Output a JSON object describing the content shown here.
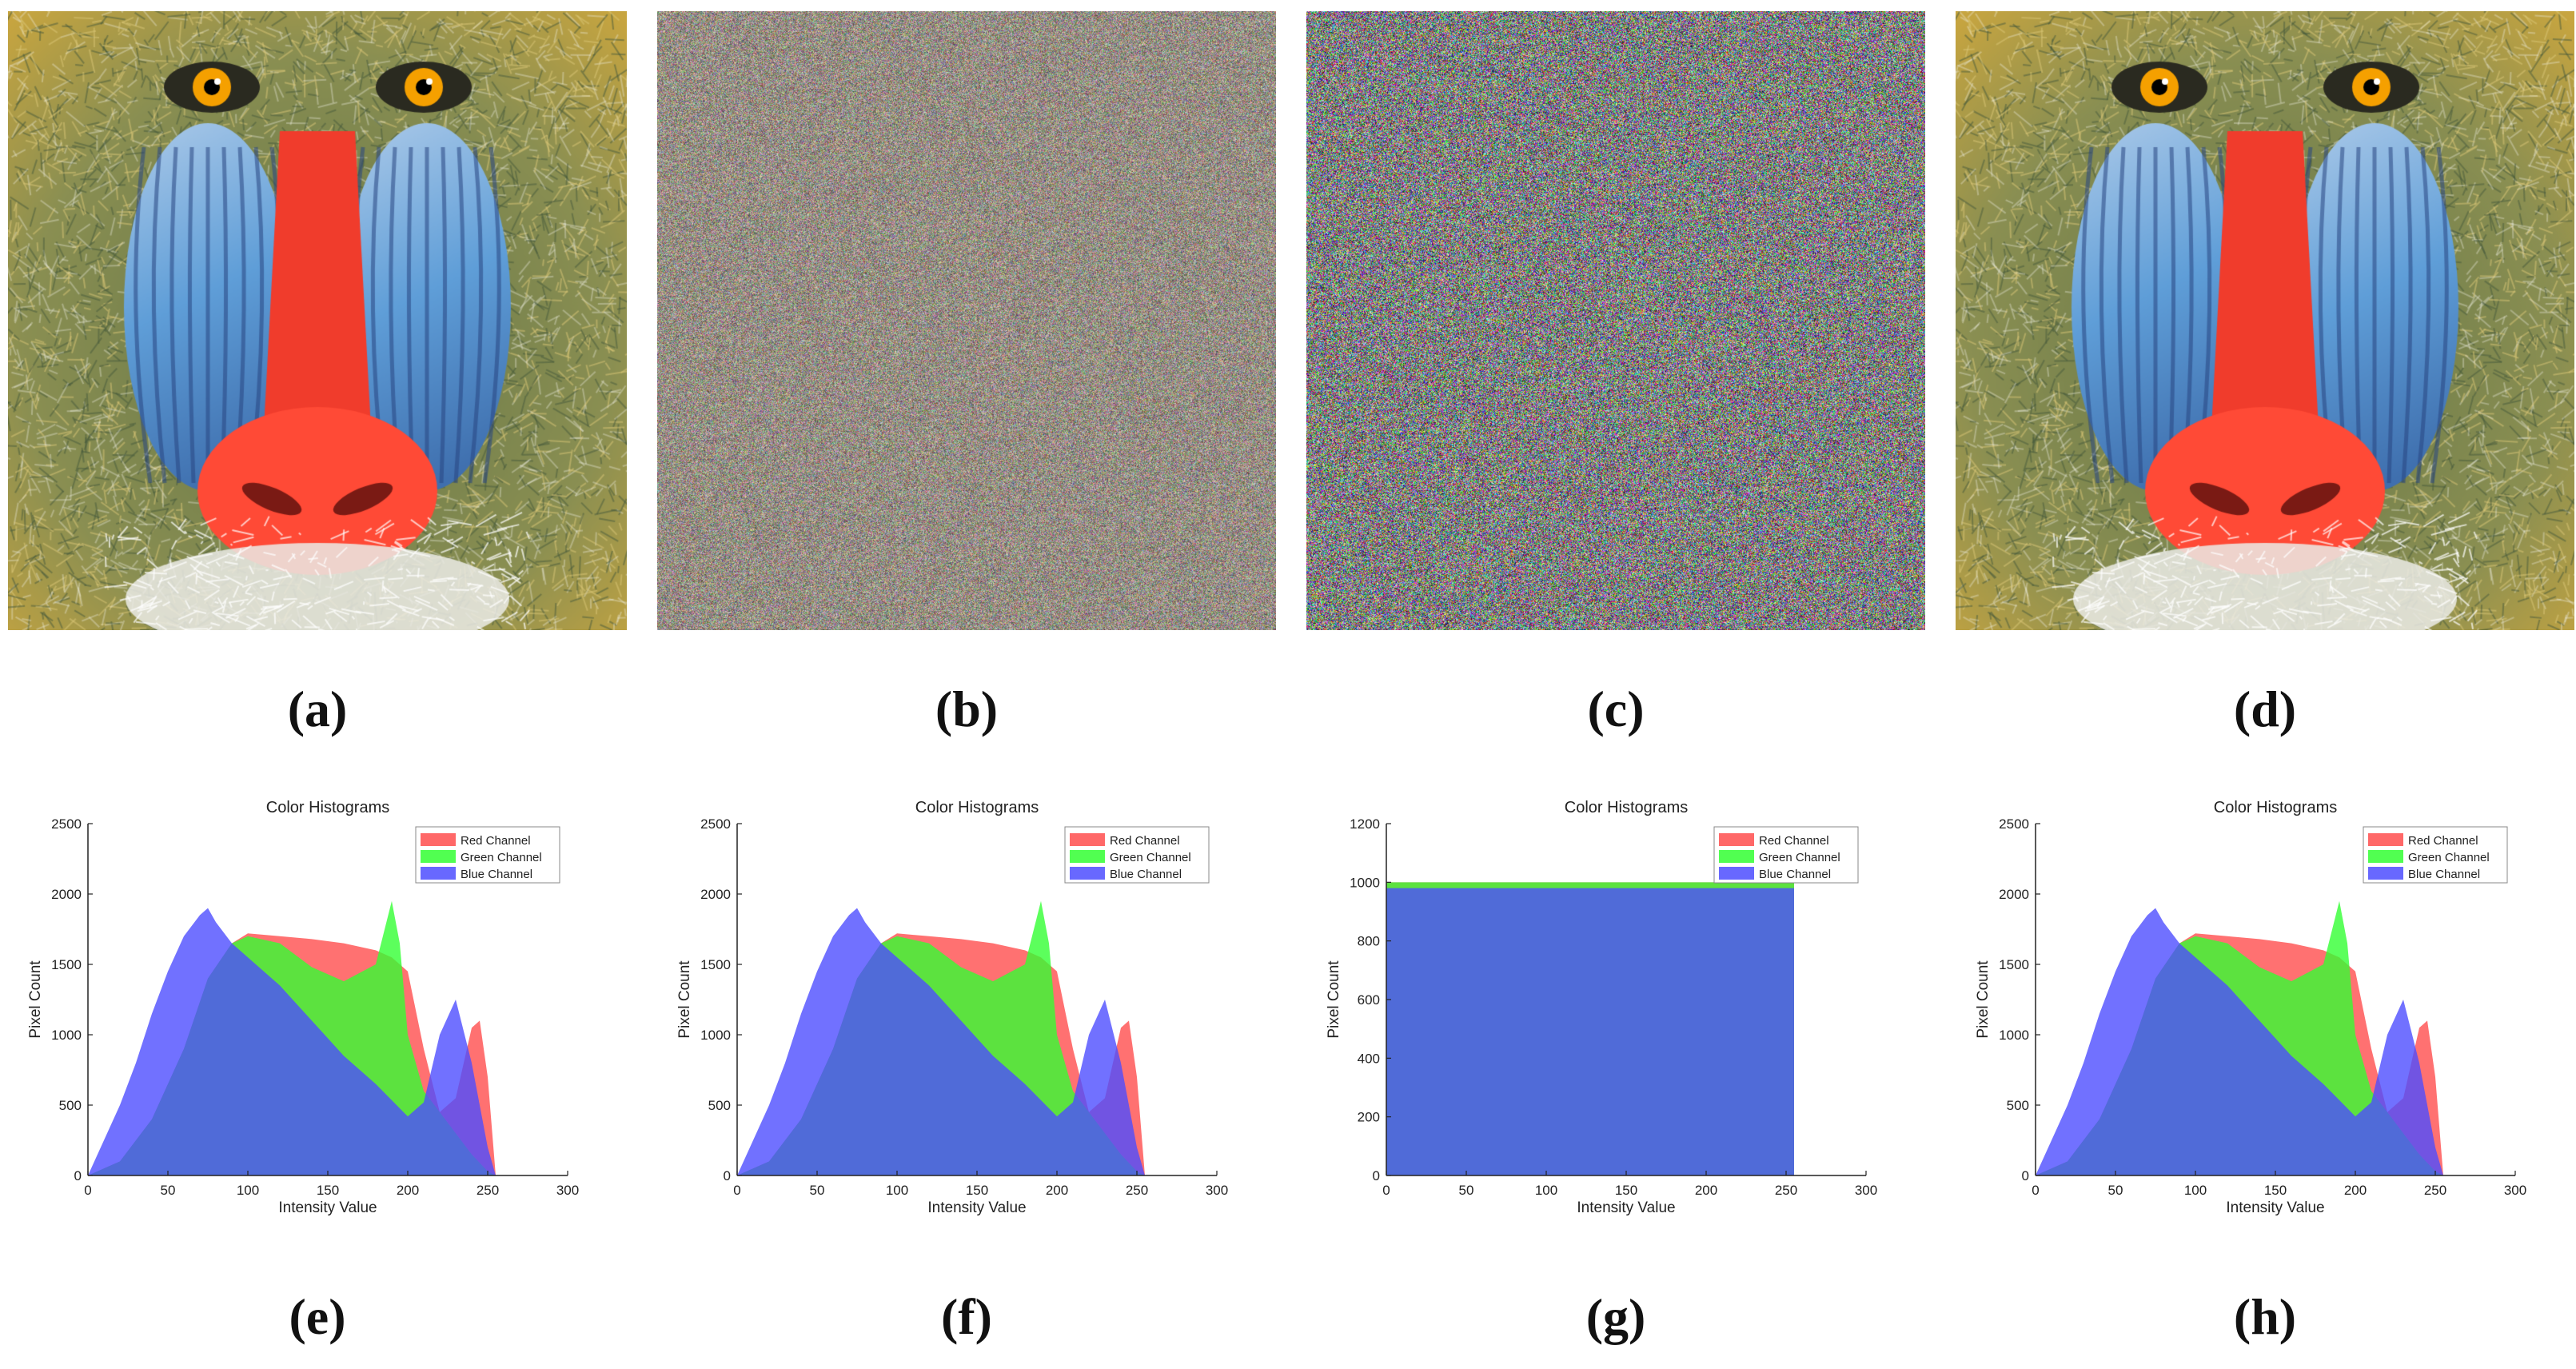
{
  "panels": [
    {
      "id": "a",
      "caption": "(a)",
      "content": "original-mandrill"
    },
    {
      "id": "b",
      "caption": "(b)",
      "content": "noise-fine"
    },
    {
      "id": "c",
      "caption": "(c)",
      "content": "noise-colorful"
    },
    {
      "id": "d",
      "caption": "(d)",
      "content": "decrypted-mandrill"
    },
    {
      "id": "e",
      "caption": "(e)"
    },
    {
      "id": "f",
      "caption": "(f)"
    },
    {
      "id": "g",
      "caption": "(g)"
    },
    {
      "id": "h",
      "caption": "(h)"
    }
  ],
  "chart_data": [
    {
      "panel": "e",
      "type": "area",
      "title": "Color Histograms",
      "xlabel": "Intensity Value",
      "ylabel": "Pixel Count",
      "xlim": [
        0,
        300
      ],
      "ylim": [
        0,
        2500
      ],
      "xticks": [
        0,
        50,
        100,
        150,
        200,
        250,
        300
      ],
      "yticks": [
        0,
        500,
        1000,
        1500,
        2000,
        2500
      ],
      "legend_position": "top-right",
      "series": [
        {
          "name": "Red Channel",
          "color": "#ff4d4d",
          "x": [
            0,
            20,
            40,
            60,
            75,
            90,
            100,
            120,
            140,
            160,
            180,
            190,
            200,
            210,
            220,
            230,
            240,
            245,
            250,
            255
          ],
          "y": [
            0,
            100,
            400,
            900,
            1400,
            1650,
            1720,
            1700,
            1680,
            1650,
            1600,
            1550,
            1450,
            900,
            450,
            550,
            1050,
            1100,
            700,
            0
          ]
        },
        {
          "name": "Green Channel",
          "color": "#33ff33",
          "x": [
            0,
            20,
            40,
            60,
            75,
            90,
            100,
            120,
            140,
            160,
            180,
            190,
            195,
            200,
            210,
            220,
            230,
            240,
            250,
            255
          ],
          "y": [
            0,
            100,
            400,
            900,
            1400,
            1650,
            1700,
            1650,
            1480,
            1380,
            1500,
            1950,
            1650,
            1000,
            600,
            450,
            300,
            150,
            30,
            0
          ]
        },
        {
          "name": "Blue Channel",
          "color": "#4d4dff",
          "x": [
            0,
            10,
            20,
            30,
            40,
            50,
            60,
            70,
            75,
            80,
            90,
            100,
            120,
            140,
            160,
            180,
            200,
            210,
            220,
            230,
            240,
            250,
            255
          ],
          "y": [
            0,
            250,
            500,
            800,
            1150,
            1450,
            1700,
            1850,
            1900,
            1800,
            1650,
            1550,
            1350,
            1100,
            850,
            650,
            420,
            520,
            1000,
            1250,
            800,
            200,
            0
          ]
        }
      ]
    },
    {
      "panel": "f",
      "type": "area",
      "title": "Color Histograms",
      "xlabel": "Intensity Value",
      "ylabel": "Pixel Count",
      "xlim": [
        0,
        300
      ],
      "ylim": [
        0,
        2500
      ],
      "xticks": [
        0,
        50,
        100,
        150,
        200,
        250,
        300
      ],
      "yticks": [
        0,
        500,
        1000,
        1500,
        2000,
        2500
      ],
      "legend_position": "top-right",
      "series": [
        {
          "name": "Red Channel",
          "color": "#ff4d4d",
          "x": [
            0,
            20,
            40,
            60,
            75,
            90,
            100,
            120,
            140,
            160,
            180,
            190,
            200,
            210,
            220,
            230,
            240,
            245,
            250,
            255
          ],
          "y": [
            0,
            100,
            400,
            900,
            1400,
            1650,
            1720,
            1700,
            1680,
            1650,
            1600,
            1550,
            1450,
            900,
            450,
            550,
            1050,
            1100,
            700,
            0
          ]
        },
        {
          "name": "Green Channel",
          "color": "#33ff33",
          "x": [
            0,
            20,
            40,
            60,
            75,
            90,
            100,
            120,
            140,
            160,
            180,
            190,
            195,
            200,
            210,
            220,
            230,
            240,
            250,
            255
          ],
          "y": [
            0,
            100,
            400,
            900,
            1400,
            1650,
            1700,
            1650,
            1480,
            1380,
            1500,
            1950,
            1650,
            1000,
            600,
            450,
            300,
            150,
            30,
            0
          ]
        },
        {
          "name": "Blue Channel",
          "color": "#4d4dff",
          "x": [
            0,
            10,
            20,
            30,
            40,
            50,
            60,
            70,
            75,
            80,
            90,
            100,
            120,
            140,
            160,
            180,
            200,
            210,
            220,
            230,
            240,
            250,
            255
          ],
          "y": [
            0,
            250,
            500,
            800,
            1150,
            1450,
            1700,
            1850,
            1900,
            1800,
            1650,
            1550,
            1350,
            1100,
            850,
            650,
            420,
            520,
            1000,
            1250,
            800,
            200,
            0
          ]
        }
      ]
    },
    {
      "panel": "g",
      "type": "area",
      "title": "Color Histograms",
      "xlabel": "Intensity Value",
      "ylabel": "Pixel Count",
      "xlim": [
        0,
        300
      ],
      "ylim": [
        0,
        1200
      ],
      "xticks": [
        0,
        50,
        100,
        150,
        200,
        250,
        300
      ],
      "yticks": [
        0,
        200,
        400,
        600,
        800,
        1000,
        1200
      ],
      "legend_position": "top-right",
      "series": [
        {
          "name": "Red Channel",
          "color": "#ff4d4d",
          "x": [
            0,
            255
          ],
          "y": [
            1000,
            1000
          ]
        },
        {
          "name": "Green Channel",
          "color": "#33ff33",
          "x": [
            0,
            255
          ],
          "y": [
            1000,
            1000
          ]
        },
        {
          "name": "Blue Channel",
          "color": "#4d4dff",
          "x": [
            0,
            255
          ],
          "y": [
            980,
            980
          ]
        }
      ]
    },
    {
      "panel": "h",
      "type": "area",
      "title": "Color Histograms",
      "xlabel": "Intensity Value",
      "ylabel": "Pixel Count",
      "xlim": [
        0,
        300
      ],
      "ylim": [
        0,
        2500
      ],
      "xticks": [
        0,
        50,
        100,
        150,
        200,
        250,
        300
      ],
      "yticks": [
        0,
        500,
        1000,
        1500,
        2000,
        2500
      ],
      "legend_position": "top-right",
      "series": [
        {
          "name": "Red Channel",
          "color": "#ff4d4d",
          "x": [
            0,
            20,
            40,
            60,
            75,
            90,
            100,
            120,
            140,
            160,
            180,
            190,
            200,
            210,
            220,
            230,
            240,
            245,
            250,
            255
          ],
          "y": [
            0,
            100,
            400,
            900,
            1400,
            1650,
            1720,
            1700,
            1680,
            1650,
            1600,
            1550,
            1450,
            900,
            450,
            550,
            1050,
            1100,
            700,
            0
          ]
        },
        {
          "name": "Green Channel",
          "color": "#33ff33",
          "x": [
            0,
            20,
            40,
            60,
            75,
            90,
            100,
            120,
            140,
            160,
            180,
            190,
            195,
            200,
            210,
            220,
            230,
            240,
            250,
            255
          ],
          "y": [
            0,
            100,
            400,
            900,
            1400,
            1650,
            1700,
            1650,
            1480,
            1380,
            1500,
            1950,
            1650,
            1000,
            600,
            450,
            300,
            150,
            30,
            0
          ]
        },
        {
          "name": "Blue Channel",
          "color": "#4d4dff",
          "x": [
            0,
            10,
            20,
            30,
            40,
            50,
            60,
            70,
            75,
            80,
            90,
            100,
            120,
            140,
            160,
            180,
            200,
            210,
            220,
            230,
            240,
            250,
            255
          ],
          "y": [
            0,
            250,
            500,
            800,
            1150,
            1450,
            1700,
            1850,
            1900,
            1800,
            1650,
            1550,
            1350,
            1100,
            850,
            650,
            420,
            520,
            1000,
            1250,
            800,
            200,
            0
          ]
        }
      ]
    }
  ]
}
